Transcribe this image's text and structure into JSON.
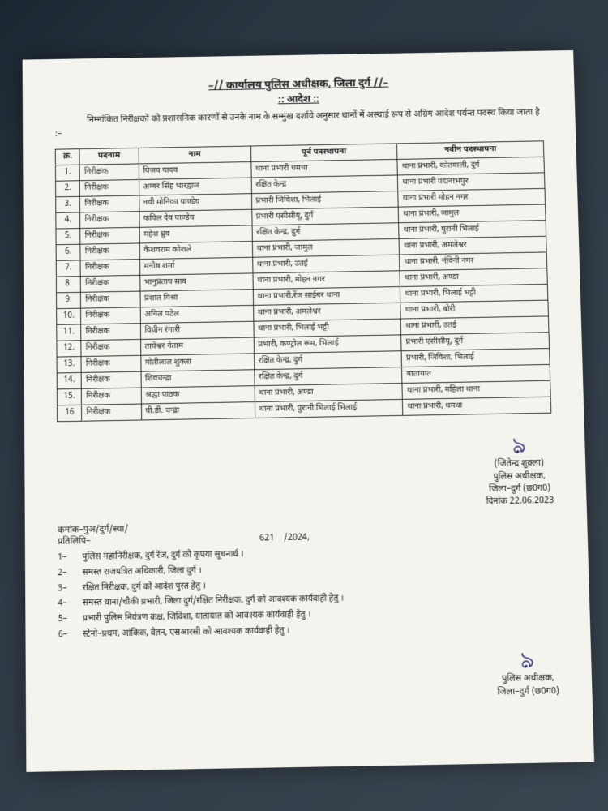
{
  "header": "–// कार्यालय पुलिस अधीक्षक, जिला दुर्ग //–",
  "subheader": ":: आदेश ::",
  "intro": "निम्नांकित निरीक्षकों को प्रशासनिक कारणों से उनके नाम के सम्मुख दर्शाये अनुसार थानों में अस्थाई रूप से अग्रिम आदेश पर्यन्त पदस्थ किया जाता है :–",
  "columns": [
    "क्र.",
    "पदनाम",
    "नाम",
    "पूर्व पदस्थापना",
    "नवीन पदस्थापना"
  ],
  "rows": [
    [
      "1.",
      "निरीक्षक",
      "विजय यादव",
      "थाना प्रभारी धमधा",
      "थाना प्रभारी, कोतवाली, दुर्ग"
    ],
    [
      "2.",
      "निरीक्षक",
      "अम्बर सिंह भारद्वाज",
      "रक्षित केन्द्र",
      "थाना प्रभारी पद्मनाभपुर"
    ],
    [
      "3.",
      "निरीक्षक",
      "नवी मोनिका पाण्डेय",
      "प्रभारी जिविशा, भिलाई",
      "थाना प्रभारी मोहन नगर"
    ],
    [
      "4.",
      "निरीक्षक",
      "कपिल देव पाण्डेय",
      "प्रभारी एसीसीयू, दुर्ग",
      "थाना प्रभारी, जामुल"
    ],
    [
      "5.",
      "निरीक्षक",
      "महेश ध्रुव",
      "रक्षित केन्द्र, दुर्ग",
      "थाना प्रभारी, पुरानी भिलाई"
    ],
    [
      "6.",
      "निरीक्षक",
      "केशवराम कोशले",
      "थाना प्रभारी, जामुल",
      "थाना प्रभारी, अमलेश्वर"
    ],
    [
      "7.",
      "निरीक्षक",
      "मनीष शर्मा",
      "थाना प्रभारी, उतई",
      "थाना प्रभारी, नंदिनी नगर"
    ],
    [
      "8.",
      "निरीक्षक",
      "भानुप्रताप साव",
      "थाना प्रभारी, मोहन नगर",
      "थाना प्रभारी, अण्डा"
    ],
    [
      "9.",
      "निरीक्षक",
      "प्रशांत मिश्रा",
      "थाना प्रभारी,रेंज साईबर थाना",
      "थाना प्रभारी, भिलाई भट्टी"
    ],
    [
      "10.",
      "निरीक्षक",
      "अनिल पटेल",
      "थाना प्रभारी, अमलेश्वर",
      "थाना प्रभारी, बोरी"
    ],
    [
      "11.",
      "निरीक्षक",
      "विपीन रंगारी",
      "थाना प्रभारी, भिलाई भट्टी",
      "थाना प्रभारी, उतई"
    ],
    [
      "12.",
      "निरीक्षक",
      "तापेश्वर नेताम",
      "प्रभारी, कण्ट्रोल रूम, भिलाई",
      "प्रभारी एसीसीयू, दुर्ग"
    ],
    [
      "13.",
      "निरीक्षक",
      "मोतीलाल शुक्ला",
      "रक्षित केन्द्र, दुर्ग",
      "प्रभारी, जिविशा, भिलाई"
    ],
    [
      "14.",
      "निरीक्षक",
      "शिवचन्द्रा",
      "रक्षित केन्द्र, दुर्ग",
      "यातायात"
    ],
    [
      "15.",
      "निरीक्षक",
      "श्रद्धा पाठक",
      "थाना प्रभारी, अण्डा",
      "थाना प्रभारी, महिला थाना"
    ],
    [
      "16",
      "निरीक्षक",
      "पी.डी. चन्द्रा",
      "थाना प्रभारी, पुरानी भिलाई भिलाई",
      "थाना प्रभारी, धमधा"
    ]
  ],
  "sig1": {
    "name": "(जितेन्द्र शुक्ला)",
    "title": "पुलिस अधीक्षक,",
    "district": "जिला–दुर्ग (छ0ग0)",
    "date": "दिनांक 22.06.2023"
  },
  "ref_label": "कमांक–पुअ/दुर्ग/स्था/",
  "ref_num": "621",
  "ref_year": "/2024,",
  "copy_label": "प्रतिलिपि–",
  "distribution": [
    [
      "1–",
      "पुलिस महानिरीक्षक, दुर्ग रेंज, दुर्ग को कृपया सूचनार्थ ।"
    ],
    [
      "2–",
      "समस्त राजपत्रित अधिकारी, जिला दुर्ग ।"
    ],
    [
      "3–",
      "रक्षित निरीक्षक, दुर्ग को आदेश पुस्त हेतु ।"
    ],
    [
      "4–",
      "समस्त थाना/चौकी प्रभारी, जिला दुर्ग/रक्षित निरीक्षक, दुर्ग को आवश्यक कार्यवाही हेतु ।"
    ],
    [
      "5–",
      "प्रभारी पुलिस नियंत्रण कक्ष, जिविशा, यातायात को आवश्यक कार्यवाही हेतु ।"
    ],
    [
      "6–",
      "स्टेनो–प्रथम, आंकिक, वेतन, एसआरसी को आवश्यक कार्यवाही हेतु ।"
    ]
  ],
  "sig2": {
    "title": "पुलिस अधीक्षक,",
    "district": "जिला–दुर्ग (छ0ग0)"
  }
}
